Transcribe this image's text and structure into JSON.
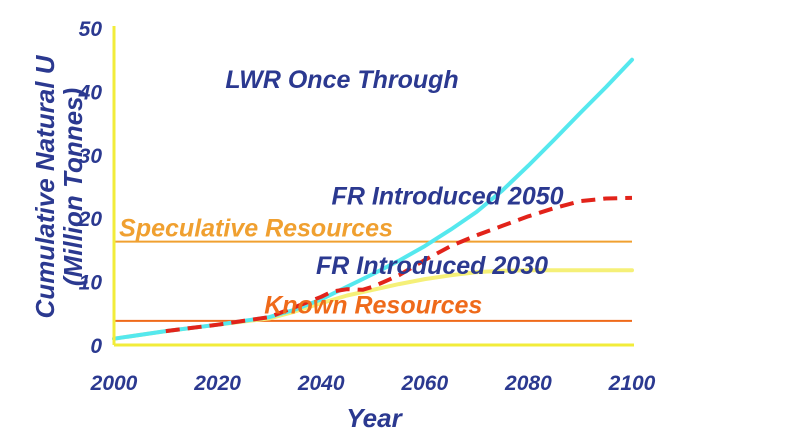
{
  "chart_data": {
    "type": "line",
    "title": "",
    "xlabel": "Year",
    "ylabel": [
      "Cumulative Natural U",
      "(Million Tonnes)"
    ],
    "xlim": [
      2000,
      2100
    ],
    "ylim": [
      0,
      50
    ],
    "xticks": [
      2000,
      2020,
      2040,
      2060,
      2080,
      2100
    ],
    "yticks": [
      0,
      10,
      20,
      30,
      40,
      50
    ],
    "grid": false,
    "series": [
      {
        "name": "LWR Once Through",
        "color": "#55e8ee",
        "style": "solid",
        "x": [
          2000,
          2010,
          2020,
          2030,
          2035,
          2040,
          2045,
          2050,
          2055,
          2060,
          2065,
          2070,
          2075,
          2080,
          2085,
          2090,
          2095,
          2100
        ],
        "y": [
          1,
          2.2,
          3.2,
          4.4,
          5.6,
          7.2,
          9.2,
          11.2,
          13.3,
          15.6,
          18.2,
          21.0,
          24.4,
          28.3,
          32.4,
          36.6,
          40.7,
          45
        ]
      },
      {
        "name": "FR Introduced 2050",
        "color": "#e2231a",
        "style": "dashed",
        "x": [
          2010,
          2020,
          2030,
          2035,
          2040,
          2042,
          2045,
          2048,
          2050,
          2055,
          2060,
          2065,
          2070,
          2075,
          2080,
          2085,
          2090,
          2095,
          2100
        ],
        "y": [
          2.2,
          3.2,
          4.4,
          6,
          7.6,
          8.4,
          8.8,
          8.7,
          9.2,
          11.0,
          13.4,
          15.6,
          17.3,
          18.8,
          20.3,
          21.6,
          22.7,
          23.1,
          23.2
        ]
      },
      {
        "name": "FR Introduced 2030",
        "color": "#f5f078",
        "style": "solid",
        "x": [
          2000,
          2010,
          2020,
          2030,
          2035,
          2040,
          2045,
          2050,
          2055,
          2060,
          2065,
          2070,
          2075,
          2080,
          2085,
          2090,
          2095,
          2100
        ],
        "y": [
          1,
          2.2,
          3.2,
          4.2,
          5.3,
          6.6,
          7.8,
          8.7,
          9.6,
          10.4,
          11.0,
          11.5,
          11.7,
          11.8,
          11.8,
          11.8,
          11.8,
          11.8
        ]
      }
    ],
    "reference_lines": [
      {
        "name": "Speculative Resources",
        "y": 16.3,
        "color": "#f0a030"
      },
      {
        "name": "Known Resources",
        "y": 3.8,
        "color": "#ef6a1a"
      }
    ],
    "annotations": [
      {
        "text": "LWR Once Through",
        "x": 2001.5,
        "y": 40.5,
        "color": "#2b3990"
      },
      {
        "text": "FR Introduced 2050",
        "x": 2022,
        "y": 22.2,
        "color": "#2b3990"
      },
      {
        "text": "Speculative Resources",
        "x": 1981,
        "y": 17.1,
        "color": "#f0a030"
      },
      {
        "text": "FR Introduced 2030",
        "x": 2019,
        "y": 11.2,
        "color": "#2b3990"
      },
      {
        "text": "Known Resources",
        "x": 2009,
        "y": 5,
        "color": "#ef6a1a"
      }
    ]
  },
  "colors": {
    "axis": "#f2ec3a",
    "text": "#2b3990"
  }
}
